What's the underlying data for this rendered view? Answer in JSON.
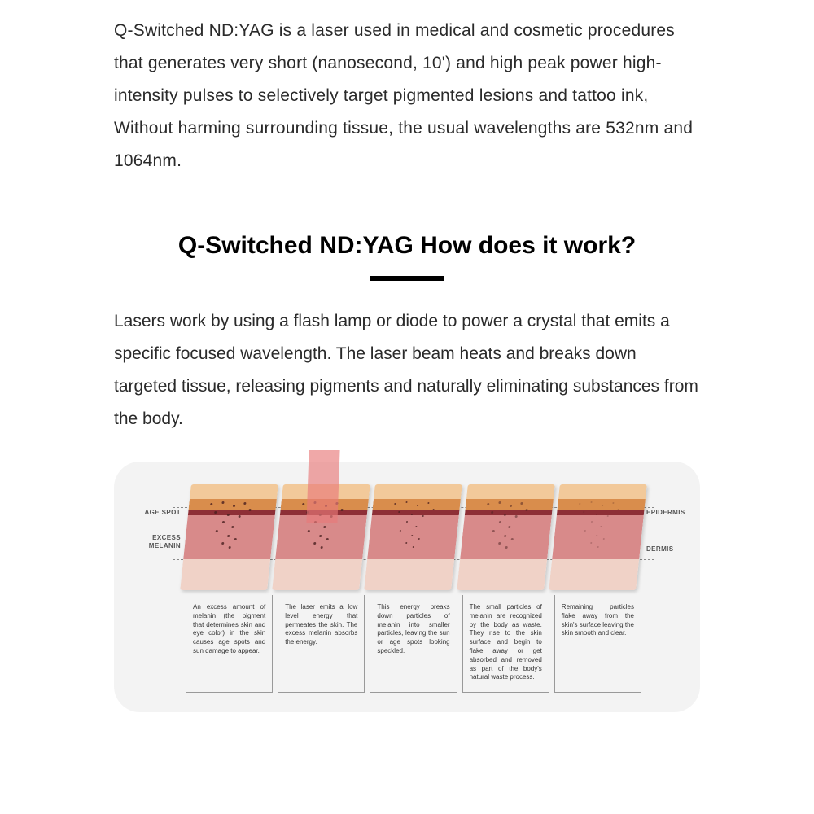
{
  "intro_text": "Q-Switched ND:YAG is a laser used in medical and cosmetic procedures that generates very short (nanosecond, 10') and high peak power high-intensity pulses to selectively target pigmented lesions and tattoo ink, Without harming surrounding tissue, the usual wavelengths are 532nm and 1064nm.",
  "section_title": "Q-Switched ND:YAG How does it work?",
  "body_text": "Lasers work by using a flash lamp or diode to power a crystal that emits a specific focused wavelength. The laser beam heats and breaks down targeted tissue, releasing pigments and naturally eliminating substances from the body.",
  "diagram": {
    "type": "infographic",
    "background_color": "#f3f3f3",
    "border_radius": 32,
    "left_labels": {
      "l1": "AGE SPOT",
      "l2": "EXCESS MELANIN"
    },
    "right_labels": {
      "r1": "EPIDERMIS",
      "r2": "DERMIS"
    },
    "dashed_line_color": "#888888",
    "skin_layers": {
      "epidermis_top": "#f2c99a",
      "epidermis_bottom": "#d98d4c",
      "dermis_top_band": "#8e2f36",
      "dermis": "#d88a8a",
      "subcutaneous": "#f0d2c7",
      "speckle_color": "#4a1f1f"
    },
    "laser_beam_color": "#e87a7a",
    "caption_border": "#999999",
    "caption_fontsize": 8,
    "panels": [
      {
        "has_laser": false,
        "speckle_class": "sp1",
        "caption": "An excess amount of melanin (the pigment that determines skin and eye color) in the skin causes age spots and sun damage to appear."
      },
      {
        "has_laser": true,
        "speckle_class": "sp1",
        "caption": "The laser emits a low level energy that permeates the skin. The excess melanin absorbs the energy."
      },
      {
        "has_laser": false,
        "speckle_class": "sp3",
        "caption": "This energy breaks down particles of melanin into smaller particles, leaving the sun or age spots looking speckled."
      },
      {
        "has_laser": false,
        "speckle_class": "sp4",
        "caption": "The small particles of melanin are recognized by the body as waste. They rise to the skin surface and begin to flake away or get absorbed and removed as part of the body's natural waste process."
      },
      {
        "has_laser": false,
        "speckle_class": "sp5",
        "caption": "Remaining particles flake away from the skin's surface leaving the skin smooth and clear."
      }
    ]
  },
  "colors": {
    "text": "#2a2a2a",
    "title": "#000000",
    "rule": "#777777",
    "rule_accent": "#000000",
    "page_bg": "#ffffff"
  },
  "typography": {
    "body_fontsize": 21,
    "body_lineheight": 1.9,
    "title_fontsize": 30,
    "title_weight": 700
  }
}
